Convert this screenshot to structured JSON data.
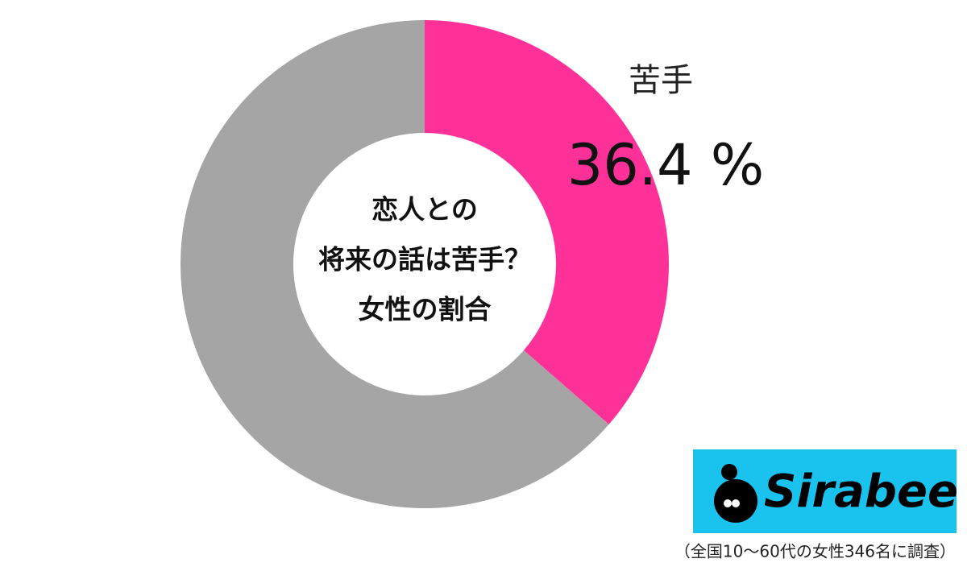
{
  "chart_data": {
    "type": "donut",
    "title": [
      "恋人との",
      "将来の話は苦手？",
      "女性の割合"
    ],
    "categories": [
      "苦手",
      null
    ],
    "values": [
      36.4,
      63.6
    ],
    "value_labels": [
      "36.4 %",
      null
    ],
    "colors": [
      "#fe3199",
      "#a5a5a5"
    ]
  },
  "logo": {
    "text": "Sirabee"
  },
  "note": "（全国10〜60代の女性346名に調査）"
}
